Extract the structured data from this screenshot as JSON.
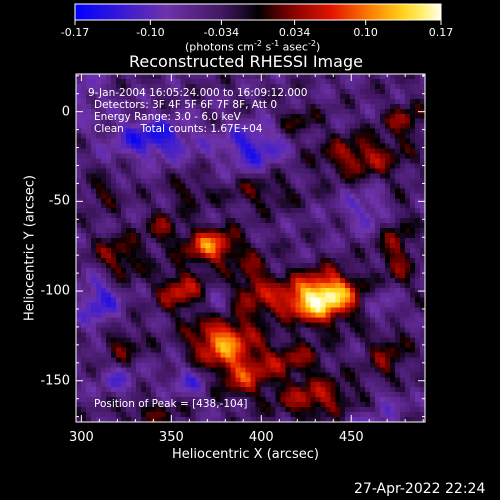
{
  "chart_data": {
    "type": "heatmap",
    "title": "Reconstructed RHESSI Image",
    "xlabel": "Heliocentric X (arcsec)",
    "ylabel": "Heliocentric Y (arcsec)",
    "xlim": [
      297,
      491
    ],
    "ylim": [
      -173,
      21
    ],
    "xticks": [
      300,
      350,
      400,
      450
    ],
    "yticks": [
      0,
      -50,
      -100,
      -150
    ],
    "colorbar": {
      "ticks": [
        "-0.17",
        "-0.10",
        "-0.034",
        "0.034",
        "0.10",
        "0.17"
      ],
      "range": [
        -0.17,
        0.17
      ],
      "unit_label": "(photons cm",
      "unit_sup1": "-2",
      "unit_mid": " s",
      "unit_sup2": "-1",
      "unit_end": " asec",
      "unit_sup3": "-2",
      "unit_close": ")"
    },
    "annotations": [
      "9-Jan-2004 16:05:24.000 to 16:09:12.000",
      "Detectors: 3F 4F 5F 6F 7F 8F, Att 0",
      "Energy Range: 3.0 - 6.0 keV",
      "Clean     Total counts: 1.67E+04"
    ],
    "peak_label": "Position of Peak = [438,-104]",
    "peak": {
      "x": 438,
      "y": -104,
      "value": 0.17
    },
    "blobs": [
      {
        "x": 438,
        "y": -102,
        "sx": 12,
        "sy": 9,
        "a": 0.17
      },
      {
        "x": 420,
        "y": -108,
        "sx": 14,
        "sy": 10,
        "a": 0.11
      },
      {
        "x": 378,
        "y": -128,
        "sx": 12,
        "sy": 10,
        "a": 0.15
      },
      {
        "x": 372,
        "y": -75,
        "sx": 10,
        "sy": 7,
        "a": 0.14
      },
      {
        "x": 355,
        "y": -100,
        "sx": 9,
        "sy": 8,
        "a": 0.1
      },
      {
        "x": 395,
        "y": -95,
        "sx": 8,
        "sy": 12,
        "a": 0.07
      },
      {
        "x": 390,
        "y": -148,
        "sx": 10,
        "sy": 8,
        "a": 0.09
      },
      {
        "x": 415,
        "y": -138,
        "sx": 14,
        "sy": 7,
        "a": 0.07
      },
      {
        "x": 430,
        "y": -160,
        "sx": 16,
        "sy": 8,
        "a": 0.09
      },
      {
        "x": 320,
        "y": -82,
        "sx": 10,
        "sy": 9,
        "a": 0.08
      },
      {
        "x": 322,
        "y": -130,
        "sx": 8,
        "sy": 7,
        "a": 0.06
      },
      {
        "x": 345,
        "y": -65,
        "sx": 7,
        "sy": 7,
        "a": 0.06
      },
      {
        "x": 360,
        "y": -45,
        "sx": 7,
        "sy": 6,
        "a": 0.05
      },
      {
        "x": 312,
        "y": -45,
        "sx": 7,
        "sy": 6,
        "a": 0.05
      },
      {
        "x": 455,
        "y": -25,
        "sx": 16,
        "sy": 8,
        "a": 0.09
      },
      {
        "x": 480,
        "y": -5,
        "sx": 8,
        "sy": 7,
        "a": 0.07
      },
      {
        "x": 420,
        "y": -5,
        "sx": 8,
        "sy": 6,
        "a": 0.05
      },
      {
        "x": 475,
        "y": -80,
        "sx": 7,
        "sy": 20,
        "a": 0.07
      },
      {
        "x": 470,
        "y": -135,
        "sx": 8,
        "sy": 14,
        "a": 0.06
      },
      {
        "x": 400,
        "y": -45,
        "sx": 14,
        "sy": 7,
        "a": 0.05
      },
      {
        "x": 338,
        "y": -168,
        "sx": 12,
        "sy": 5,
        "a": 0.05
      },
      {
        "x": 340,
        "y": -15,
        "sx": 16,
        "sy": 8,
        "a": -0.1
      },
      {
        "x": 395,
        "y": -20,
        "sx": 12,
        "sy": 9,
        "a": -0.09
      },
      {
        "x": 310,
        "y": -105,
        "sx": 8,
        "sy": 12,
        "a": -0.08
      },
      {
        "x": 375,
        "y": -110,
        "sx": 6,
        "sy": 6,
        "a": -0.05
      },
      {
        "x": 415,
        "y": -118,
        "sx": 7,
        "sy": 5,
        "a": -0.05
      },
      {
        "x": 470,
        "y": -108,
        "sx": 7,
        "sy": 10,
        "a": -0.07
      },
      {
        "x": 360,
        "y": -150,
        "sx": 8,
        "sy": 6,
        "a": -0.06
      },
      {
        "x": 460,
        "y": -55,
        "sx": 10,
        "sy": 8,
        "a": -0.06
      },
      {
        "x": 320,
        "y": -150,
        "sx": 8,
        "sy": 6,
        "a": -0.05
      },
      {
        "x": 470,
        "y": -160,
        "sx": 7,
        "sy": 6,
        "a": -0.05
      },
      {
        "x": 300,
        "y": 10,
        "sx": 10,
        "sy": 10,
        "a": -0.04
      },
      {
        "x": 455,
        "y": -175,
        "sx": 10,
        "sy": 6,
        "a": -0.05
      }
    ]
  },
  "footer": {
    "datestamp": "27-Apr-2022 22:24"
  }
}
